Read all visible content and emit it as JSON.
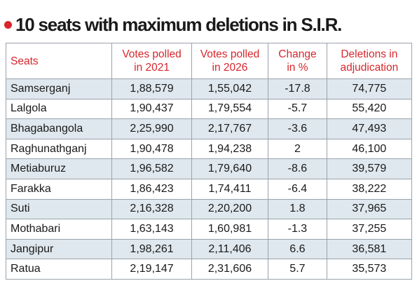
{
  "header": {
    "title": "10 seats with maximum deletions in S.I.R."
  },
  "table": {
    "columns": [
      [
        "Seats"
      ],
      [
        "Votes polled",
        "in 2021"
      ],
      [
        "Votes polled",
        "in 2026"
      ],
      [
        "Change",
        "in %"
      ],
      [
        "Deletions in",
        "adjudication"
      ]
    ],
    "rows": [
      [
        "Samserganj",
        "1,88,579",
        "1,55,042",
        "-17.8",
        "74,775"
      ],
      [
        "Lalgola",
        "1,90,437",
        "1,79,554",
        "-5.7",
        "55,420"
      ],
      [
        "Bhagabangola",
        "2,25,990",
        "2,17,767",
        "-3.6",
        "47,493"
      ],
      [
        "Raghunathganj",
        "1,90,478",
        "1,94,238",
        "2",
        "46,100"
      ],
      [
        "Metiaburuz",
        "1,96,582",
        "1,79,640",
        "-8.6",
        "39,579"
      ],
      [
        "Farakka",
        "1,86,423",
        "1,74,411",
        "-6.4",
        "38,222"
      ],
      [
        "Suti",
        "2,16,328",
        "2,20,200",
        "1.8",
        "37,965"
      ],
      [
        "Mothabari",
        "1,63,143",
        "1,60,981",
        "-1.3",
        "37,255"
      ],
      [
        "Jangipur",
        "1,98,261",
        "2,11,406",
        "6.6",
        "36,581"
      ],
      [
        "Ratua",
        "2,19,147",
        "2,31,606",
        "5.7",
        "35,573"
      ]
    ]
  }
}
